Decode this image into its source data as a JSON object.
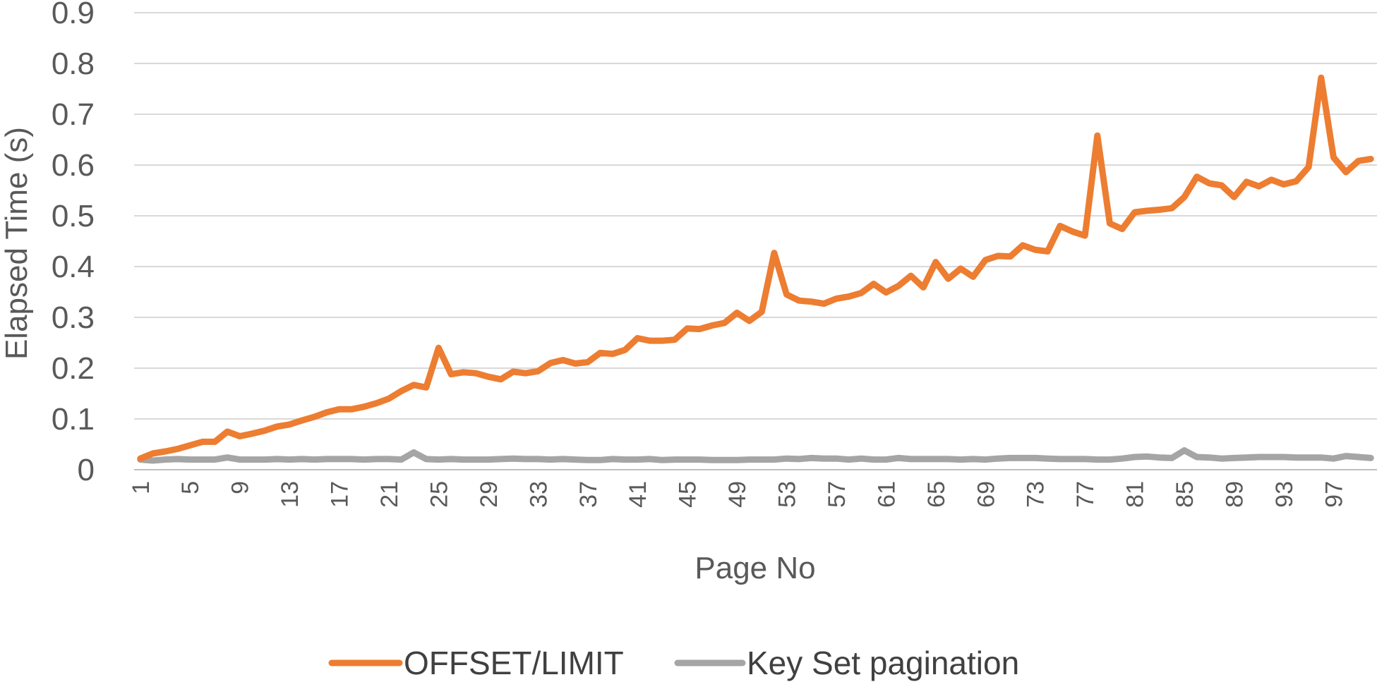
{
  "chart_data": {
    "type": "line",
    "title": "",
    "xlabel": "Page No",
    "ylabel": "Elapsed Time (s)",
    "ylim": [
      0,
      0.9
    ],
    "yticks": [
      "0",
      "0.1",
      "0.2",
      "0.3",
      "0.4",
      "0.5",
      "0.6",
      "0.7",
      "0.8",
      "0.9"
    ],
    "x": [
      1,
      2,
      3,
      4,
      5,
      6,
      7,
      8,
      9,
      10,
      11,
      12,
      13,
      14,
      15,
      16,
      17,
      18,
      19,
      20,
      21,
      22,
      23,
      24,
      25,
      26,
      27,
      28,
      29,
      30,
      31,
      32,
      33,
      34,
      35,
      36,
      37,
      38,
      39,
      40,
      41,
      42,
      43,
      44,
      45,
      46,
      47,
      48,
      49,
      50,
      51,
      52,
      53,
      54,
      55,
      56,
      57,
      58,
      59,
      60,
      61,
      62,
      63,
      64,
      65,
      66,
      67,
      68,
      69,
      70,
      71,
      72,
      73,
      74,
      75,
      76,
      77,
      78,
      79,
      80,
      81,
      82,
      83,
      84,
      85,
      86,
      87,
      88,
      89,
      90,
      91,
      92,
      93,
      94,
      95,
      96,
      97,
      98,
      99,
      100
    ],
    "xtick_labels": [
      "1",
      "5",
      "9",
      "13",
      "17",
      "21",
      "25",
      "29",
      "33",
      "37",
      "41",
      "45",
      "49",
      "53",
      "57",
      "61",
      "65",
      "69",
      "73",
      "77",
      "81",
      "85",
      "89",
      "93",
      "97"
    ],
    "grid": true,
    "legend_position": "bottom",
    "series": [
      {
        "name": "OFFSET/LIMIT",
        "color": "#ED7D31",
        "values": [
          0.022,
          0.032,
          0.036,
          0.041,
          0.048,
          0.055,
          0.055,
          0.075,
          0.066,
          0.071,
          0.077,
          0.085,
          0.089,
          0.097,
          0.104,
          0.113,
          0.119,
          0.119,
          0.124,
          0.131,
          0.14,
          0.155,
          0.167,
          0.162,
          0.24,
          0.188,
          0.192,
          0.19,
          0.183,
          0.178,
          0.193,
          0.19,
          0.194,
          0.21,
          0.216,
          0.209,
          0.212,
          0.23,
          0.228,
          0.236,
          0.259,
          0.254,
          0.254,
          0.256,
          0.278,
          0.277,
          0.284,
          0.289,
          0.309,
          0.293,
          0.311,
          0.427,
          0.345,
          0.333,
          0.331,
          0.327,
          0.337,
          0.341,
          0.348,
          0.366,
          0.349,
          0.362,
          0.382,
          0.359,
          0.409,
          0.376,
          0.396,
          0.38,
          0.413,
          0.421,
          0.42,
          0.442,
          0.433,
          0.43,
          0.48,
          0.469,
          0.461,
          0.658,
          0.485,
          0.474,
          0.507,
          0.51,
          0.512,
          0.515,
          0.537,
          0.577,
          0.564,
          0.56,
          0.537,
          0.567,
          0.558,
          0.571,
          0.562,
          0.568,
          0.596,
          0.772,
          0.615,
          0.586,
          0.608,
          0.612
        ]
      },
      {
        "name": "Key Set pagination",
        "color": "#A5A5A5",
        "values": [
          0.02,
          0.018,
          0.02,
          0.021,
          0.02,
          0.02,
          0.02,
          0.024,
          0.02,
          0.02,
          0.02,
          0.021,
          0.02,
          0.021,
          0.02,
          0.021,
          0.021,
          0.021,
          0.02,
          0.021,
          0.021,
          0.02,
          0.034,
          0.021,
          0.02,
          0.021,
          0.02,
          0.02,
          0.02,
          0.021,
          0.022,
          0.021,
          0.021,
          0.02,
          0.021,
          0.02,
          0.019,
          0.019,
          0.021,
          0.02,
          0.02,
          0.021,
          0.019,
          0.02,
          0.02,
          0.02,
          0.019,
          0.019,
          0.019,
          0.02,
          0.02,
          0.02,
          0.022,
          0.021,
          0.023,
          0.022,
          0.022,
          0.02,
          0.022,
          0.02,
          0.02,
          0.023,
          0.021,
          0.021,
          0.021,
          0.021,
          0.02,
          0.021,
          0.02,
          0.022,
          0.023,
          0.023,
          0.023,
          0.022,
          0.021,
          0.021,
          0.021,
          0.02,
          0.02,
          0.022,
          0.025,
          0.026,
          0.024,
          0.023,
          0.038,
          0.025,
          0.024,
          0.022,
          0.023,
          0.024,
          0.025,
          0.025,
          0.025,
          0.024,
          0.024,
          0.024,
          0.022,
          0.027,
          0.025,
          0.023
        ]
      }
    ]
  }
}
